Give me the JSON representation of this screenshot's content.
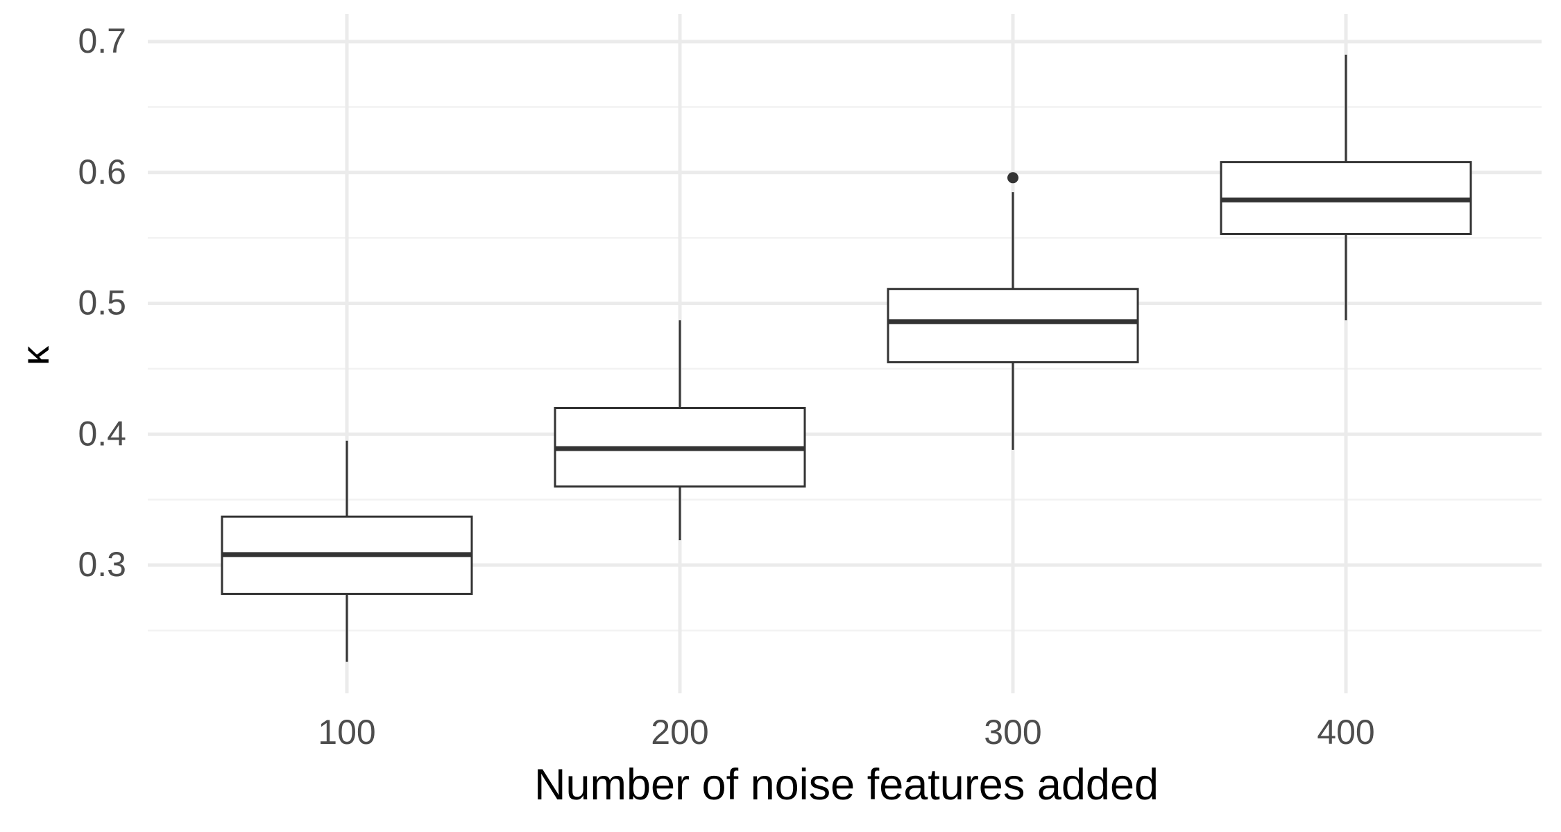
{
  "chart_data": {
    "type": "box",
    "title": "",
    "xlabel": "Number of noise features added",
    "ylabel": "κ",
    "categories": [
      "100",
      "200",
      "300",
      "400"
    ],
    "ylim": [
      0.2,
      0.7
    ],
    "y_ticks": [
      "0.3",
      "0.4",
      "0.5",
      "0.6",
      "0.7"
    ],
    "grid": true,
    "boxes": [
      {
        "category": "100",
        "lower_whisker": 0.226,
        "q1": 0.278,
        "median": 0.308,
        "q3": 0.337,
        "upper_whisker": 0.395,
        "outliers": []
      },
      {
        "category": "200",
        "lower_whisker": 0.319,
        "q1": 0.36,
        "median": 0.389,
        "q3": 0.42,
        "upper_whisker": 0.487,
        "outliers": []
      },
      {
        "category": "300",
        "lower_whisker": 0.388,
        "q1": 0.455,
        "median": 0.486,
        "q3": 0.511,
        "upper_whisker": 0.585,
        "outliers": [
          0.596
        ]
      },
      {
        "category": "400",
        "lower_whisker": 0.487,
        "q1": 0.553,
        "median": 0.579,
        "q3": 0.608,
        "upper_whisker": 0.69,
        "outliers": []
      }
    ],
    "colors": {
      "box_stroke": "#333333",
      "box_fill": "#ffffff",
      "grid_major": "#ebebeb",
      "grid_minor": "#f2f2f2",
      "tick_text": "#4d4d4d",
      "axis_title": "#000000"
    }
  }
}
